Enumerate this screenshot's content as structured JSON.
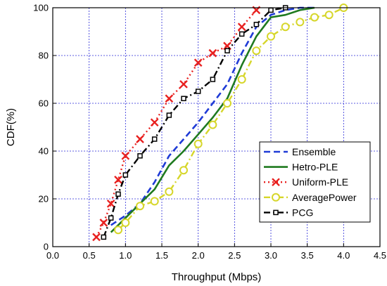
{
  "chart_data": {
    "type": "line",
    "xlabel": "Throughput (Mbps)",
    "ylabel": "CDF(%)",
    "xlim": [
      0.0,
      4.5
    ],
    "ylim": [
      0,
      100
    ],
    "xticks": [
      "0.0",
      "0.5",
      "1.0",
      "1.5",
      "2.0",
      "2.5",
      "3.0",
      "3.5",
      "4.0",
      "4.5"
    ],
    "yticks": [
      "0",
      "20",
      "40",
      "60",
      "80",
      "100"
    ],
    "grid": true,
    "legend_position": "bottom-right",
    "series": [
      {
        "name": "Ensemble",
        "color": "#1f3bd6",
        "line_style": "dashed",
        "marker": "none",
        "x": [
          0.8,
          1.0,
          1.2,
          1.4,
          1.6,
          1.8,
          2.0,
          2.2,
          2.4,
          2.6,
          2.8,
          3.0,
          3.2,
          3.4,
          3.6
        ],
        "y": [
          9,
          13,
          18,
          27,
          38,
          45,
          52,
          60,
          68,
          81,
          92,
          97,
          99,
          100,
          100
        ]
      },
      {
        "name": "Hetro-PLE",
        "color": "#1f7a1f",
        "line_style": "solid",
        "marker": "none",
        "x": [
          0.8,
          1.0,
          1.2,
          1.4,
          1.6,
          1.8,
          2.0,
          2.2,
          2.4,
          2.6,
          2.8,
          3.0,
          3.2,
          3.4,
          3.6
        ],
        "y": [
          6,
          12,
          18,
          24,
          34,
          40,
          47,
          54,
          62,
          76,
          88,
          96,
          97,
          99,
          100
        ]
      },
      {
        "name": "Uniform-PLE",
        "color": "#e8201f",
        "line_style": "dotted",
        "marker": "x",
        "x": [
          0.6,
          0.7,
          0.8,
          0.9,
          1.0,
          1.2,
          1.4,
          1.6,
          1.8,
          2.0,
          2.2,
          2.4,
          2.6,
          2.8
        ],
        "y": [
          4,
          10,
          18,
          28,
          38,
          45,
          52,
          62,
          68,
          77,
          81,
          84,
          92,
          99
        ]
      },
      {
        "name": "AveragePower",
        "color": "#d6d62a",
        "line_style": "dashdot",
        "marker": "circle",
        "x": [
          0.9,
          1.0,
          1.2,
          1.4,
          1.6,
          1.8,
          2.0,
          2.2,
          2.4,
          2.6,
          2.8,
          3.0,
          3.2,
          3.4,
          3.6,
          3.8,
          4.0
        ],
        "y": [
          7,
          10,
          17,
          19,
          23,
          32,
          43,
          51,
          60,
          70,
          82,
          88,
          92,
          94,
          96,
          97,
          100
        ]
      },
      {
        "name": "PCG",
        "color": "#000000",
        "line_style": "dashdot",
        "marker": "square",
        "x": [
          0.7,
          0.8,
          0.9,
          1.0,
          1.2,
          1.4,
          1.6,
          1.8,
          2.0,
          2.2,
          2.4,
          2.6,
          2.8,
          3.0,
          3.2
        ],
        "y": [
          4,
          12,
          22,
          30,
          38,
          45,
          55,
          62,
          65,
          70,
          82,
          89,
          93,
          99,
          100
        ]
      }
    ]
  }
}
